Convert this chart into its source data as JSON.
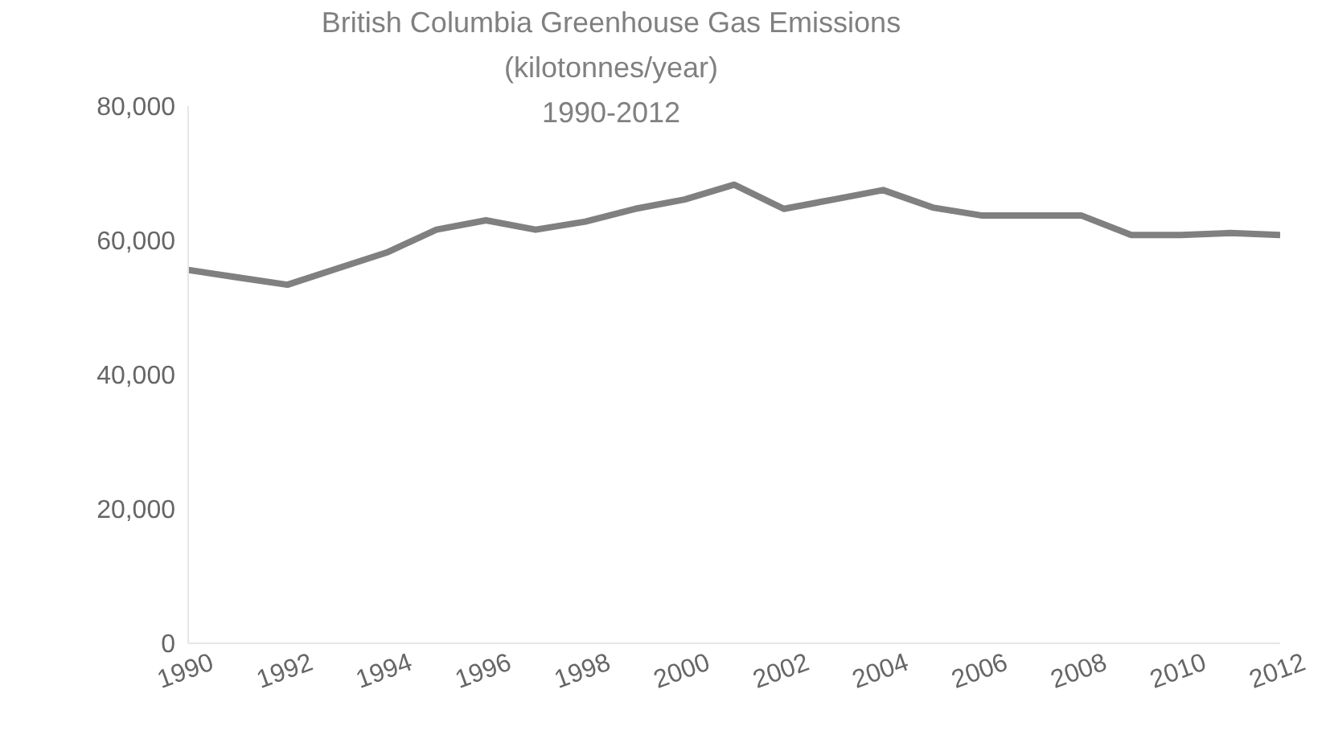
{
  "chart_data": {
    "type": "line",
    "title": "British Columbia Greenhouse Gas Emissions\n(kilotonnes/year)\n1990-2012",
    "x": [
      1990,
      1991,
      1992,
      1993,
      1994,
      1995,
      1996,
      1997,
      1998,
      1999,
      2000,
      2001,
      2002,
      2003,
      2004,
      2005,
      2006,
      2007,
      2008,
      2009,
      2010,
      2011,
      2012
    ],
    "series": [
      {
        "color": "#808080",
        "values": [
          55600,
          54500,
          53400,
          55800,
          58200,
          61600,
          63000,
          61600,
          62800,
          64700,
          66100,
          68300,
          64700,
          66100,
          67500,
          64900,
          63700,
          63700,
          63700,
          60800,
          60800,
          61100,
          60800
        ]
      }
    ],
    "xlim": [
      1990,
      2012
    ],
    "xticks": [
      1990,
      1992,
      1994,
      1996,
      1998,
      2000,
      2002,
      2004,
      2006,
      2008,
      2010,
      2012
    ],
    "ylim": [
      0,
      80000
    ],
    "yticks": [
      0,
      {
        "value": 20000,
        "label": "20,000"
      },
      {
        "value": 40000,
        "label": "40,000"
      },
      {
        "value": 60000,
        "label": "60,000"
      },
      {
        "value": 80000,
        "label": "80,000"
      }
    ],
    "grid": false,
    "legend": false,
    "marker": "none",
    "line_style": "solid"
  }
}
